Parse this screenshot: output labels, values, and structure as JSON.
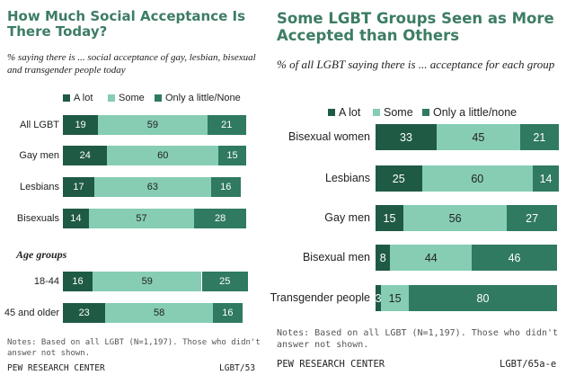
{
  "chart_data": [
    {
      "type": "stacked-bar-horizontal",
      "title": "How Much Social Acceptance Is There Today?",
      "subtitle": "% saying there is ... social acceptance of gay, lesbian, bisexual and transgender people today",
      "categories": [
        "All LGBT",
        "Gay men",
        "Lesbians",
        "Bisexuals",
        "18-44",
        "45 and older"
      ],
      "group_label": "Age groups",
      "series": [
        {
          "name": "A lot",
          "color": "#1f5a45",
          "values": [
            19,
            24,
            17,
            14,
            16,
            23
          ]
        },
        {
          "name": "Some",
          "color": "#86cdb4",
          "values": [
            59,
            60,
            63,
            57,
            59,
            58
          ]
        },
        {
          "name": "Only a little/None",
          "color": "#2f7a60",
          "values": [
            21,
            15,
            16,
            28,
            25,
            16
          ]
        }
      ],
      "note": "Notes: Based on all LGBT (N=1,197). Those who didn't answer not shown.",
      "source": "PEW RESEARCH CENTER",
      "report_id": "LGBT/53"
    },
    {
      "type": "stacked-bar-horizontal",
      "title": "Some LGBT Groups Seen as More Accepted than Others",
      "subtitle": "% of all LGBT saying there is ... acceptance for each group",
      "categories": [
        "Bisexual women",
        "Lesbians",
        "Gay men",
        "Bisexual men",
        "Transgender people"
      ],
      "series": [
        {
          "name": "A lot",
          "color": "#1f5a45",
          "values": [
            33,
            25,
            15,
            8,
            3
          ]
        },
        {
          "name": "Some",
          "color": "#86cdb4",
          "values": [
            45,
            60,
            56,
            44,
            15
          ]
        },
        {
          "name": "Only a little/none",
          "color": "#2f7a60",
          "values": [
            21,
            14,
            27,
            46,
            80
          ]
        }
      ],
      "note": "Notes: Based on all LGBT (N=1,197). Those who didn't answer not shown.",
      "source": "PEW RESEARCH CENTER",
      "report_id": "LGBT/65a-e"
    }
  ]
}
